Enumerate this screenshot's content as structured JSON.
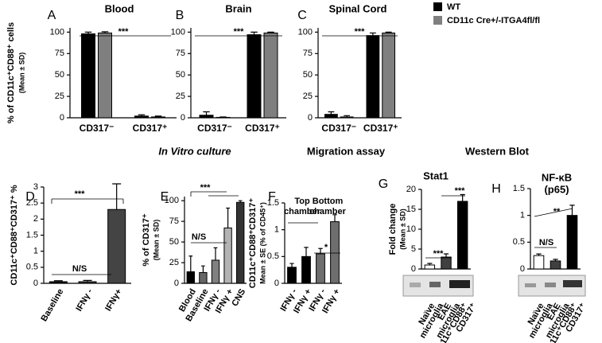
{
  "legend_title_note": null,
  "headings": [
    "In Vitro culture",
    "Migration assay",
    "Western Blot"
  ],
  "chart_data": [
    {
      "type": "bar",
      "label": "A",
      "title": "Blood",
      "ylabel": [
        "% of CD11c⁺CD88⁺ cells",
        "(Mean ± SD)"
      ],
      "categories": [
        "CD317⁻",
        "CD317⁺"
      ],
      "series": [
        {
          "name": "WT",
          "color": "#000000",
          "values": [
            98,
            2
          ],
          "errors": [
            2,
            1.5
          ]
        },
        {
          "name": "CD11c Cre+/-ITGA4fl/fl",
          "color": "#7f7f7f",
          "values": [
            99,
            1
          ],
          "errors": [
            1.5,
            1
          ]
        }
      ],
      "ylim": [
        0,
        105
      ],
      "yticks": [
        0,
        25,
        50,
        75,
        100
      ],
      "annotations": [
        "***"
      ]
    },
    {
      "type": "bar",
      "label": "B",
      "title": "Brain",
      "categories": [
        "CD317⁻",
        "CD317⁺"
      ],
      "series": [
        {
          "color": "#000000",
          "values": [
            3,
            97
          ],
          "errors": [
            4,
            3
          ]
        },
        {
          "color": "#7f7f7f",
          "values": [
            0.5,
            99
          ],
          "errors": [
            0.5,
            1
          ]
        }
      ],
      "ylim": [
        0,
        105
      ],
      "yticks": [
        0,
        25,
        50,
        75,
        100
      ],
      "annotations": [
        "***"
      ]
    },
    {
      "type": "bar",
      "label": "C",
      "title": "Spinal Cord",
      "categories": [
        "CD317⁻",
        "CD317⁺"
      ],
      "series": [
        {
          "color": "#000000",
          "values": [
            4,
            96
          ],
          "errors": [
            3,
            3
          ]
        },
        {
          "color": "#7f7f7f",
          "values": [
            1,
            99
          ],
          "errors": [
            1.5,
            1
          ]
        }
      ],
      "ylim": [
        0,
        105
      ],
      "yticks": [
        0,
        25,
        50,
        75,
        100
      ],
      "annotations": [
        "***"
      ]
    },
    {
      "type": "bar",
      "label": "D",
      "ylabel": [
        "CD11c⁺CD88⁺CD317⁺ %"
      ],
      "categories": [
        "Baseline",
        "IFNγ -",
        "IFNγ+"
      ],
      "values": [
        0.05,
        0.05,
        2.3
      ],
      "errors": [
        0.03,
        0.04,
        0.8
      ],
      "colors": [
        "#111111",
        "#333333",
        "#444444"
      ],
      "ylim": [
        0,
        3
      ],
      "yticks": [
        0,
        0.5,
        1,
        1.5,
        2,
        2.5,
        3
      ],
      "annotations": [
        "N/S",
        "***"
      ]
    },
    {
      "type": "bar",
      "label": "E",
      "ylabel": [
        "% of CD317⁺",
        "(Mean ± SD)"
      ],
      "categories": [
        "Blood",
        "Baseline",
        "IFNγ -",
        "IFNγ +",
        "CNS"
      ],
      "values": [
        14,
        13,
        28,
        67,
        98
      ],
      "errors": [
        19,
        8,
        15,
        24,
        2
      ],
      "colors": [
        "#000000",
        "#666666",
        "#808080",
        "#b3b3b3",
        "#333333"
      ],
      "ylim": [
        0,
        105
      ],
      "yticks": [
        0,
        25,
        50,
        75,
        100
      ],
      "annotations": [
        "N/S",
        "***"
      ]
    },
    {
      "type": "bar",
      "label": "F",
      "ylabel": [
        "CD11c⁺CD88⁺CD317⁺",
        "Mean ± SE (% of CD45⁺)"
      ],
      "categories": [
        "IFNγ -",
        "IFNγ +",
        "IFNγ -",
        "IFNγ +"
      ],
      "values": [
        0.3,
        0.5,
        0.55,
        1.15
      ],
      "errors": [
        0.07,
        0.17,
        0.1,
        0.13
      ],
      "colors": [
        "#000000",
        "#000000",
        "#6e6e6e",
        "#6e6e6e"
      ],
      "ylim": [
        0,
        1.5
      ],
      "yticks": [
        0,
        0.5,
        1,
        1.5
      ],
      "annotations": [
        "Top",
        "chamber",
        "Bottom",
        "chamber",
        "*"
      ]
    },
    {
      "type": "bar",
      "label": "G",
      "title": [
        "Stat1"
      ],
      "ylabel": [
        "Fold change",
        "(Mean ± SD)"
      ],
      "categories": [
        [
          "Naïve",
          "microglia"
        ],
        [
          "EAE",
          "microglia"
        ],
        [
          "CD11c⁺CD88⁺",
          "CD317⁺"
        ]
      ],
      "values": [
        1,
        3,
        17
      ],
      "errors": [
        0.4,
        0.8,
        1.7
      ],
      "colors": [
        "#ffffff",
        "#404040",
        "#000000"
      ],
      "ylim": [
        0,
        20
      ],
      "yticks": [
        0,
        5,
        10,
        15,
        20
      ],
      "annotations": [
        "***",
        "***"
      ]
    },
    {
      "type": "bar",
      "label": "H",
      "title": [
        "NF-κB",
        "(p65)"
      ],
      "categories": [
        [
          "Naïve",
          "microglia"
        ],
        [
          "EAE",
          "microglia"
        ],
        [
          "CD11c⁺CD88⁺",
          "CD317⁺"
        ]
      ],
      "values": [
        0.25,
        0.15,
        1.0
      ],
      "errors": [
        0.03,
        0.03,
        0.19
      ],
      "colors": [
        "#ffffff",
        "#404040",
        "#000000"
      ],
      "ylim": [
        0,
        1.5
      ],
      "yticks": [
        0,
        0.5,
        1,
        1.5
      ],
      "annotations": [
        "N/S",
        "**"
      ]
    }
  ]
}
